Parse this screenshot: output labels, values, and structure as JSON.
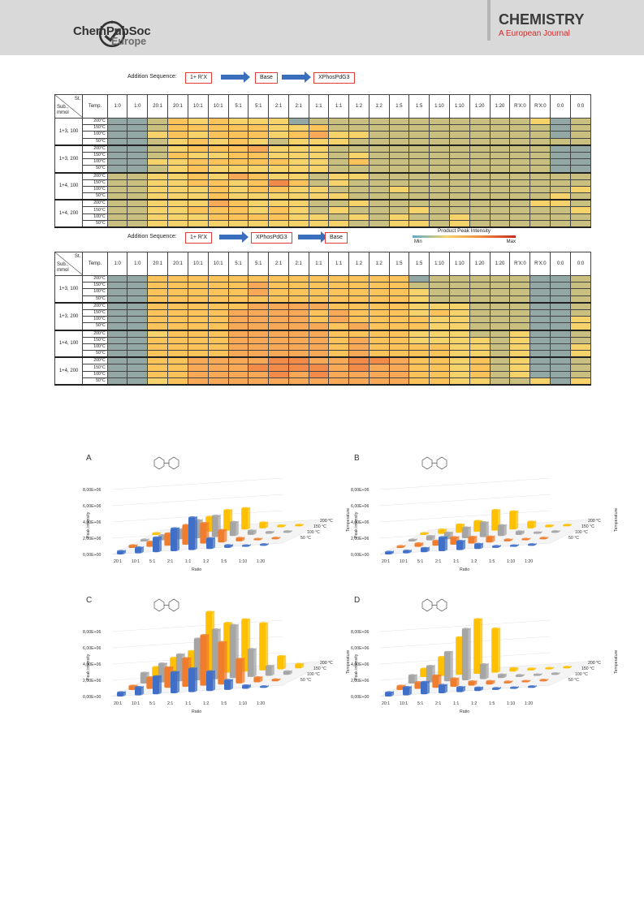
{
  "header": {
    "logo_name": "ChemPubSoc",
    "logo_sub": "Europe",
    "journal_title": "CHEMISTRY",
    "journal_sub": "A European Journal"
  },
  "heatmap1": {
    "sequence_label": "Addition Sequence:",
    "steps": [
      "1+ R'X",
      "Base",
      "XPhosPdG3"
    ]
  },
  "heatmap2": {
    "sequence_label": "Addition Sequence:",
    "steps": [
      "1+ R'X",
      "XPhosPdG3",
      "Base"
    ]
  },
  "table": {
    "corner_top": "St.",
    "corner_bottom": "Sub., mmol",
    "temp_header": "Temp.",
    "columns": [
      "1:0",
      "1:0",
      "20:1",
      "20:1",
      "10:1",
      "10:1",
      "5:1",
      "5:1",
      "2:1",
      "2:1",
      "1:1",
      "1:1",
      "1:2",
      "1:2",
      "1:5",
      "1:5",
      "1:10",
      "1:10",
      "1:20",
      "1:20",
      "R'X:0",
      "R'X:0",
      "0:0",
      "0:0"
    ],
    "groups": [
      "1+3, 100",
      "1+3, 200",
      "1+4, 100",
      "1+4, 200"
    ],
    "temps": [
      "200°C",
      "150°C",
      "100°C",
      "50°C"
    ]
  },
  "legend": {
    "title": "Product Peak Intensity",
    "min": "Min",
    "max": "Max",
    "colors": [
      "#5f8fbd",
      "#93a8a4",
      "#c9bf7e",
      "#f5d36a",
      "#fbc35a",
      "#f7a957",
      "#f28a4a"
    ]
  },
  "heat_codes": {
    "hm1": [
      "1124343331222222222223122",
      "1124444433422222222222122",
      "1134344434533222222222122",
      "1123434323332222222222222",
      "1123444533322222222222111",
      "1124334433323222222222111",
      "1133444443324222222222111",
      "1123433333322222222222111",
      "2233435433233222222222222",
      "2233443464232222222222222",
      "2233343443322232222222232",
      "2233343333332222222222322",
      "2233354333223222222223322",
      "2233444343232223222222232",
      "2233344443323232232222222",
      "2233333333332233232222222"
    ],
    "hm2": [
      "1144444444444441222221122",
      "1144444544444442222221122",
      "1144444544444443222221122",
      "1144444444444443222221122",
      "1144444555544443332221122",
      "1144445555454443432221122",
      "1144445555454444332221132",
      "1144445555545444332221132",
      "1134445555544443332231122",
      "1144445555545443333231122",
      "1144445555545444433231132",
      "1144445555545444433231132",
      "1144555566556654434231122",
      "1144555666656554434231122",
      "1144555565655554434231122",
      "1134555555555554433223133"
    ]
  },
  "panels": [
    {
      "letter": "A",
      "molecule": "H3CO-(biphenyl)-OH",
      "y_ticks": [
        "8,00E+06",
        "6,00E+06",
        "4,00E+06",
        "2,00E+06",
        "0,00E+00"
      ],
      "ylabel": "Peak intensity",
      "xlabel": "Ratio",
      "categories": [
        "20:1",
        "10:1",
        "5:1",
        "2:1",
        "1:1",
        "1:2",
        "1:5",
        "1:10",
        "1:20"
      ],
      "temps": [
        "200 °C",
        "150 °C",
        "100 °C",
        "50 °C"
      ],
      "zlabel": "Temperature"
    },
    {
      "letter": "B",
      "molecule": "H3CO-(biphenyl)-OH",
      "y_ticks": [
        "8,00E+06",
        "6,00E+06",
        "4,00E+06",
        "2,00E+06",
        "0,00E+00"
      ],
      "ylabel": "Peak intensity",
      "xlabel": "Ratio",
      "categories": [
        "20:1",
        "10:1",
        "5:1",
        "2:1",
        "1:1",
        "1:2",
        "1:5",
        "1:10",
        "1:20"
      ],
      "temps": [
        "200 °C",
        "150 °C",
        "100 °C",
        "50 °C"
      ],
      "zlabel": "Temperature"
    },
    {
      "letter": "C",
      "molecule": "H3CO-(biphenyl)-OH",
      "y_ticks": [
        "8,00E+06",
        "6,00E+06",
        "4,00E+06",
        "2,00E+06",
        "0,00E+00"
      ],
      "ylabel": "Peak intensity",
      "xlabel": "Ratio",
      "categories": [
        "20:1",
        "10:1",
        "5:1",
        "2:1",
        "1:1",
        "1:2",
        "1:5",
        "1:10",
        "1:20"
      ],
      "temps": [
        "200 °C",
        "150 °C",
        "100 °C",
        "50 °C"
      ],
      "zlabel": "Temperature"
    },
    {
      "letter": "D",
      "molecule": "OCH3-(biphenyl)-OH",
      "y_ticks": [
        "8,00E+06",
        "6,00E+06",
        "4,00E+06",
        "2,00E+06",
        "0,00E+00"
      ],
      "ylabel": "Peak intensity",
      "xlabel": "Ratio",
      "categories": [
        "20:1",
        "10:1",
        "5:1",
        "2:1",
        "1:1",
        "1:2",
        "1:5",
        "1:10",
        "1:20"
      ],
      "temps": [
        "200 °C",
        "150 °C",
        "100 °C",
        "50 °C"
      ],
      "zlabel": "Temperature"
    }
  ],
  "chart_data": [
    {
      "type": "bar",
      "title": "A",
      "categories": [
        "20:1",
        "10:1",
        "5:1",
        "2:1",
        "1:1",
        "1:2",
        "1:5",
        "1:10",
        "1:20"
      ],
      "ylabel": "Peak intensity",
      "xlabel": "Ratio",
      "ylim": [
        0,
        8000000
      ],
      "series": [
        {
          "name": "50 °C",
          "color": "#3f6fc6",
          "values": [
            400000,
            700000,
            1800000,
            2800000,
            4000000,
            1300000,
            300000,
            100000,
            50000
          ]
        },
        {
          "name": "100 °C",
          "color": "#ef7d2d",
          "values": [
            300000,
            600000,
            1500000,
            2400000,
            2500000,
            1500000,
            400000,
            100000,
            50000
          ]
        },
        {
          "name": "150 °C",
          "color": "#a5a5a5",
          "values": [
            200000,
            600000,
            1200000,
            2200000,
            2600000,
            1700000,
            500000,
            200000,
            50000
          ]
        },
        {
          "name": "200 °C",
          "color": "#fec000",
          "values": [
            200000,
            400000,
            1000000,
            1800000,
            2500000,
            2600000,
            700000,
            200000,
            100000
          ]
        }
      ]
    },
    {
      "type": "bar",
      "title": "B",
      "categories": [
        "20:1",
        "10:1",
        "5:1",
        "2:1",
        "1:1",
        "1:2",
        "1:5",
        "1:10",
        "1:20"
      ],
      "ylabel": "Peak intensity",
      "xlabel": "Ratio",
      "ylim": [
        0,
        8000000
      ],
      "series": [
        {
          "name": "50 °C",
          "color": "#3f6fc6",
          "values": [
            300000,
            300000,
            500000,
            1700000,
            1100000,
            600000,
            200000,
            100000,
            50000
          ]
        },
        {
          "name": "100 °C",
          "color": "#ef7d2d",
          "values": [
            200000,
            400000,
            600000,
            900000,
            800000,
            700000,
            200000,
            100000,
            50000
          ]
        },
        {
          "name": "150 °C",
          "color": "#a5a5a5",
          "values": [
            200000,
            500000,
            800000,
            1300000,
            1800000,
            1300000,
            400000,
            100000,
            50000
          ]
        },
        {
          "name": "200 °C",
          "color": "#fec000",
          "values": [
            200000,
            500000,
            1000000,
            1300000,
            2500000,
            2200000,
            800000,
            200000,
            100000
          ]
        }
      ]
    },
    {
      "type": "bar",
      "title": "C",
      "categories": [
        "20:1",
        "10:1",
        "5:1",
        "2:1",
        "1:1",
        "1:2",
        "1:5",
        "1:10",
        "1:20"
      ],
      "ylabel": "Peak intensity",
      "xlabel": "Ratio",
      "ylim": [
        0,
        8000000
      ],
      "series": [
        {
          "name": "50 °C",
          "color": "#3f6fc6",
          "values": [
            500000,
            1000000,
            2200000,
            2600000,
            2900000,
            2400000,
            1200000,
            400000,
            100000
          ]
        },
        {
          "name": "100 °C",
          "color": "#ef7d2d",
          "values": [
            500000,
            1400000,
            2500000,
            3500000,
            6200000,
            5200000,
            3000000,
            600000,
            200000
          ]
        },
        {
          "name": "150 °C",
          "color": "#a5a5a5",
          "values": [
            1300000,
            2300000,
            3300000,
            5100000,
            6100000,
            6500000,
            3400000,
            1200000,
            400000
          ]
        },
        {
          "name": "200 °C",
          "color": "#fec000",
          "values": [
            1200000,
            2200000,
            2900000,
            7600000,
            6100000,
            6400000,
            5800000,
            1600000,
            500000
          ]
        }
      ]
    },
    {
      "type": "bar",
      "title": "D",
      "categories": [
        "20:1",
        "10:1",
        "5:1",
        "2:1",
        "1:1",
        "1:2",
        "1:5",
        "1:10",
        "1:20"
      ],
      "ylabel": "Peak intensity",
      "xlabel": "Ratio",
      "ylim": [
        0,
        8000000
      ],
      "series": [
        {
          "name": "50 °C",
          "color": "#3f6fc6",
          "values": [
            500000,
            1000000,
            1500000,
            1000000,
            600000,
            400000,
            200000,
            100000,
            50000
          ]
        },
        {
          "name": "100 °C",
          "color": "#ef7d2d",
          "values": [
            500000,
            800000,
            1500000,
            1000000,
            500000,
            400000,
            200000,
            100000,
            50000
          ]
        },
        {
          "name": "150 °C",
          "color": "#a5a5a5",
          "values": [
            1000000,
            2000000,
            3600000,
            6300000,
            1800000,
            400000,
            200000,
            100000,
            50000
          ]
        },
        {
          "name": "200 °C",
          "color": "#fec000",
          "values": [
            1000000,
            2300000,
            4600000,
            6700000,
            5400000,
            400000,
            200000,
            100000,
            50000
          ]
        }
      ]
    }
  ]
}
